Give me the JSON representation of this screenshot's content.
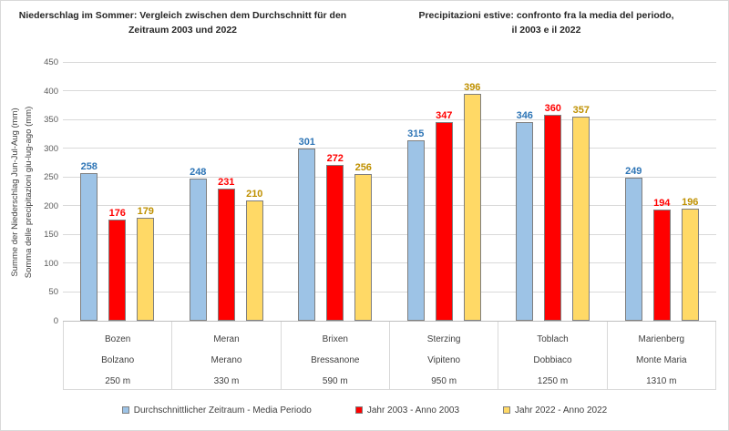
{
  "chart_data": {
    "type": "bar",
    "titles": {
      "german": [
        "Niederschlag im Sommer: Vergleich zwischen dem Durchschnitt für den",
        "Zeitraum 2003 und 2022"
      ],
      "italian": [
        "Precipitazioni estive: confronto fra la media del periodo,",
        "il 2003 e il 2022"
      ]
    },
    "ylabel": [
      "Summe der Niederschlag Jun-Jul-Aug (mm)",
      "Somma delle precipitazioni giu-lug-ago (mm)"
    ],
    "ylim": [
      0,
      450
    ],
    "yticks": [
      0,
      50,
      100,
      150,
      200,
      250,
      300,
      350,
      400,
      450
    ],
    "grid": true,
    "legend_position": "bottom",
    "categories": [
      {
        "name_de": "Bozen",
        "name_it": "Bolzano",
        "elevation": "250 m"
      },
      {
        "name_de": "Meran",
        "name_it": "Merano",
        "elevation": "330 m"
      },
      {
        "name_de": "Brixen",
        "name_it": "Bressanone",
        "elevation": "590 m"
      },
      {
        "name_de": "Sterzing",
        "name_it": "Vipiteno",
        "elevation": "950 m"
      },
      {
        "name_de": "Toblach",
        "name_it": "Dobbiaco",
        "elevation": "1250 m"
      },
      {
        "name_de": "Marienberg",
        "name_it": "Monte Maria",
        "elevation": "1310 m"
      }
    ],
    "series": [
      {
        "name": "Durchschnittlicher Zeitraum - Media Periodo",
        "color": "#9DC3E6",
        "label_color": "#2E75B6",
        "values": [
          258,
          248,
          301,
          315,
          346,
          249
        ]
      },
      {
        "name": "Jahr 2003 - Anno 2003",
        "color": "#FF0000",
        "label_color": "#FF0000",
        "values": [
          176,
          231,
          272,
          347,
          360,
          194
        ]
      },
      {
        "name": "Jahr 2022 - Anno 2022",
        "color": "#FFD966",
        "label_color": "#BF9000",
        "values": [
          179,
          210,
          256,
          396,
          357,
          196
        ]
      }
    ]
  }
}
